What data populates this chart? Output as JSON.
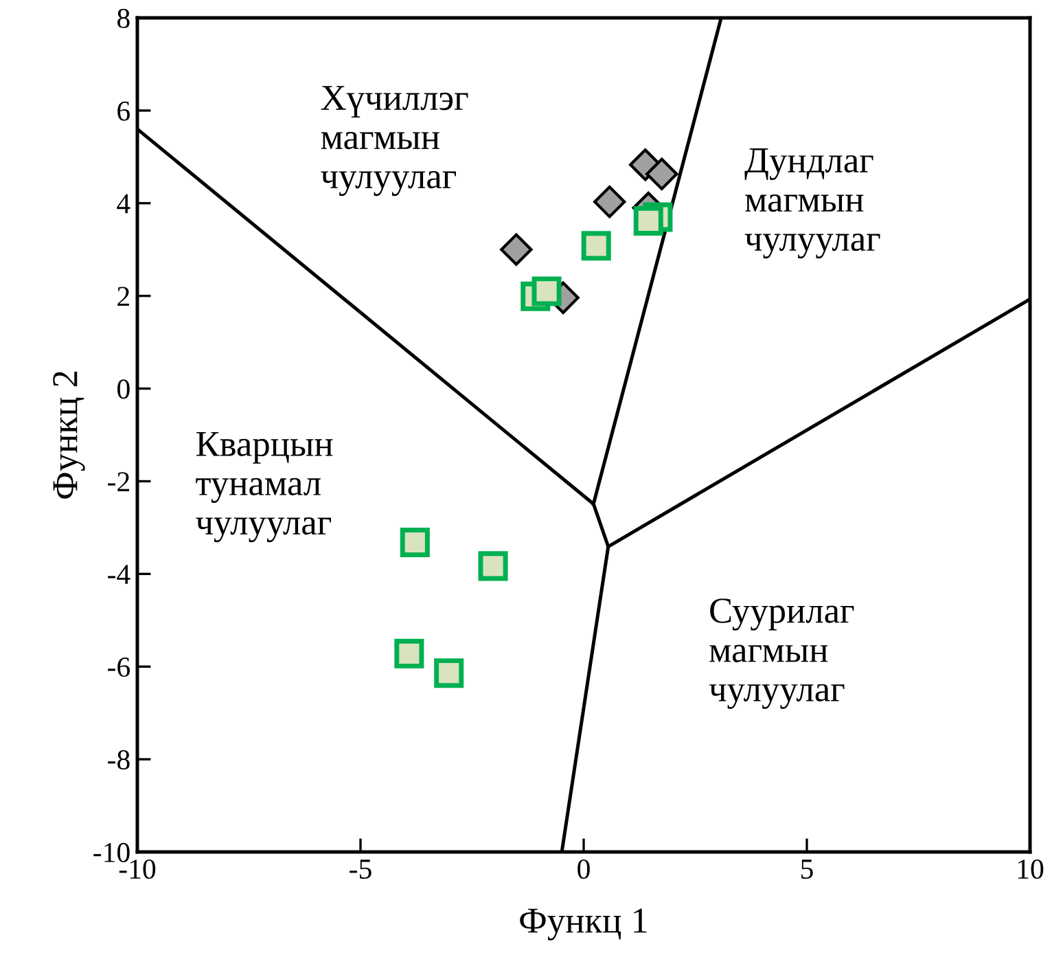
{
  "chart_data": {
    "type": "scatter",
    "xlabel": "Функц 1",
    "ylabel": "Функц 2",
    "xlim": [
      -10,
      10
    ],
    "ylim": [
      -10,
      8
    ],
    "xticks": [
      -10,
      -5,
      0,
      5,
      10
    ],
    "yticks": [
      -10,
      -8,
      -6,
      -4,
      -2,
      0,
      2,
      4,
      6,
      8
    ],
    "grid": false,
    "legend": false,
    "series": [
      {
        "type": "line",
        "color": "#000000",
        "marker": "none",
        "x": [
          -10,
          0.22,
          0.55,
          10
        ],
        "values": [
          5.6,
          -2.49,
          -3.41,
          1.93
        ]
      },
      {
        "type": "line",
        "color": "#000000",
        "marker": "none",
        "x": [
          0.22,
          3.08
        ],
        "values": [
          -2.49,
          8
        ]
      },
      {
        "type": "line",
        "color": "#000000",
        "marker": "none",
        "x": [
          0.55,
          -0.49
        ],
        "values": [
          -3.41,
          -10
        ]
      },
      {
        "color": "#a0a0a0",
        "marker": "diamond",
        "x": [
          -1.51,
          -0.46,
          0.58,
          1.38,
          1.75,
          1.45
        ],
        "values": [
          3.0,
          1.96,
          4.03,
          4.83,
          4.63,
          3.9
        ]
      },
      {
        "color": "#00b050",
        "marker": "square",
        "x": [
          -1.08,
          -0.83,
          0.28,
          1.66,
          1.45,
          -3.78,
          -2.03,
          -3.91,
          -3.02
        ],
        "values": [
          1.99,
          2.1,
          3.08,
          3.7,
          3.62,
          -3.32,
          -3.83,
          -5.72,
          -6.14
        ]
      }
    ],
    "annotations": [
      "Хүчиллэг\nмагмын\nчулуулаг",
      "Дундлаг\nмагмын\nчулуулаг",
      "Кварцын\nтунамал\nчулуулаг",
      "Суурилаг\nмагмын\nчулуулаг"
    ]
  }
}
